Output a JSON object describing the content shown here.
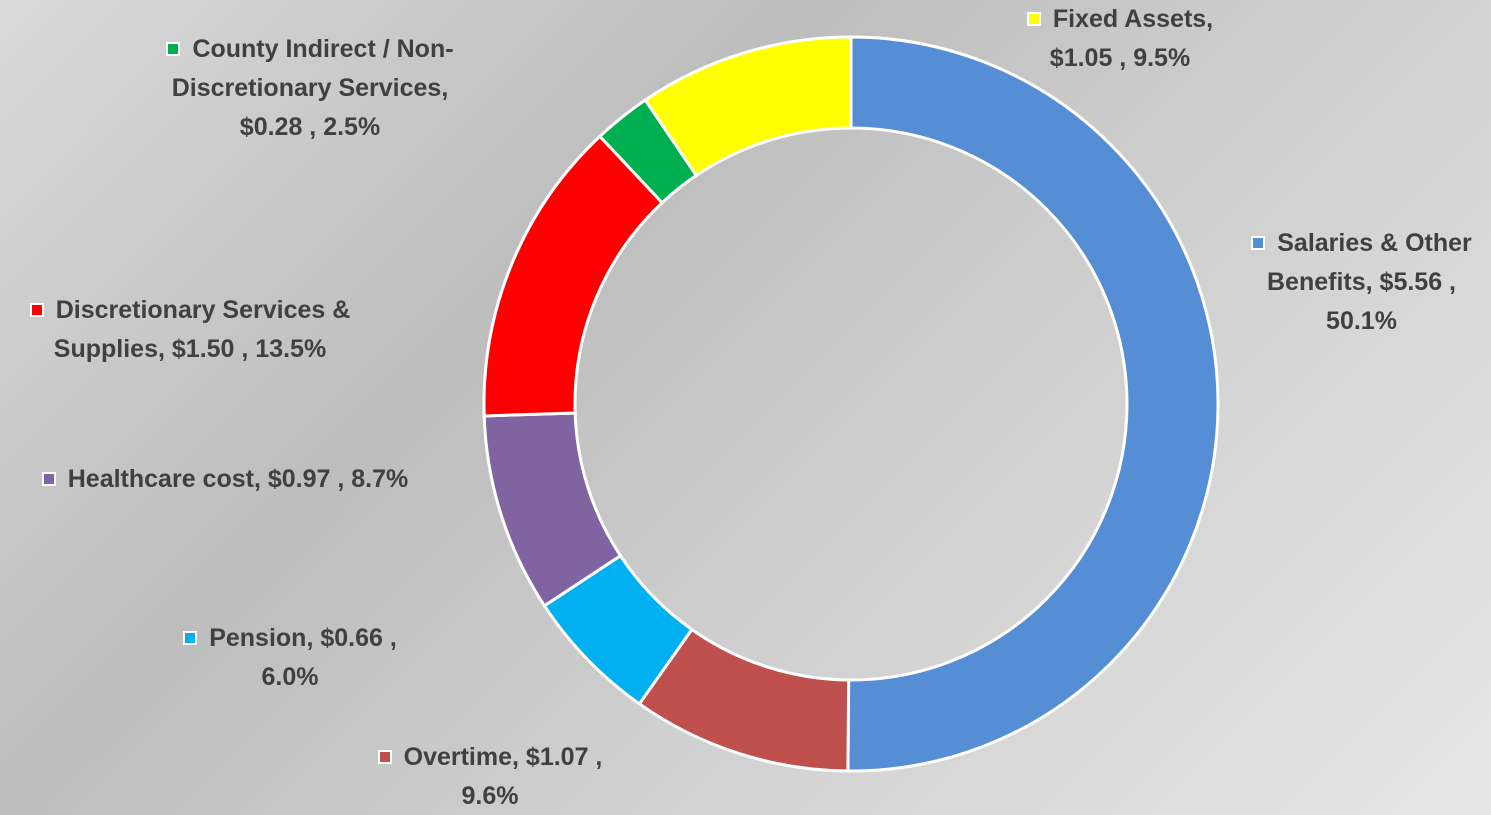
{
  "chart_data": {
    "type": "donut",
    "categories": [
      "Salaries & Other Benefits,",
      "Overtime,",
      "Pension,",
      "Healthcare cost,",
      "Discretionary Services & Supplies,",
      "County Indirect / Non-Discretionary Services,",
      "Fixed Assets,"
    ],
    "values": [
      5.56,
      1.07,
      0.66,
      0.97,
      1.5,
      0.28,
      1.05
    ],
    "value_labels": [
      "$5.56 , 50.1%",
      "$1.07 , 9.6%",
      "$0.66 , 6.0%",
      "$0.97 , 8.7%",
      "$1.50 , 13.5%",
      "$0.28 , 2.5%",
      "$1.05 , 9.5%"
    ],
    "colors": [
      "#558ed5",
      "#c0504d",
      "#00b0f0",
      "#8064a2",
      "#ff0000",
      "#00b050",
      "#ffff00"
    ]
  }
}
